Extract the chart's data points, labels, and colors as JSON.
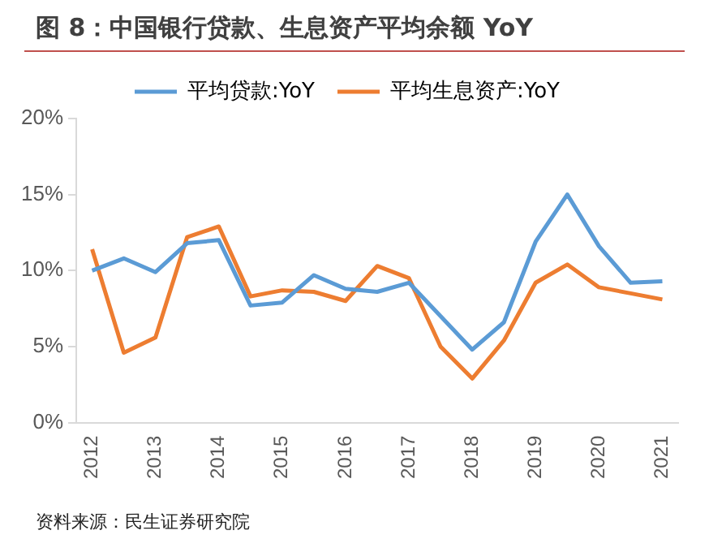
{
  "chart_data": {
    "type": "line",
    "title": "图 8：中国银行贷款、生息资产平均余额 YoY",
    "categories": [
      "2012",
      null,
      "2013",
      null,
      "2014",
      null,
      "2015",
      null,
      "2016",
      null,
      "2017",
      null,
      "2018",
      null,
      "2019",
      null,
      "2020",
      null,
      "2021"
    ],
    "series": [
      {
        "name": "平均贷款:YoY",
        "color": "#5b9bd5",
        "values": [
          10.0,
          10.8,
          9.9,
          11.8,
          12.0,
          7.7,
          7.9,
          9.7,
          8.8,
          8.6,
          9.2,
          7.0,
          4.8,
          6.6,
          11.9,
          15.0,
          11.6,
          9.2,
          9.3
        ]
      },
      {
        "name": "平均生息资产:YoY",
        "color": "#ed7d31",
        "values": [
          11.4,
          4.6,
          5.6,
          12.2,
          12.9,
          8.3,
          8.7,
          8.6,
          8.0,
          10.3,
          9.5,
          5.0,
          2.9,
          5.4,
          9.2,
          10.4,
          8.9,
          8.5,
          8.1
        ]
      }
    ],
    "ylim": [
      0,
      20
    ],
    "yticks": [
      {
        "value": 0,
        "label": "0%"
      },
      {
        "value": 5,
        "label": "5%"
      },
      {
        "value": 10,
        "label": "10%"
      },
      {
        "value": 15,
        "label": "15%"
      },
      {
        "value": 20,
        "label": "20%"
      }
    ],
    "grid": false,
    "legend": "top",
    "marker": "none",
    "line_style": "solid",
    "annotations": [
      "资料来源：民生证券研究院"
    ]
  }
}
